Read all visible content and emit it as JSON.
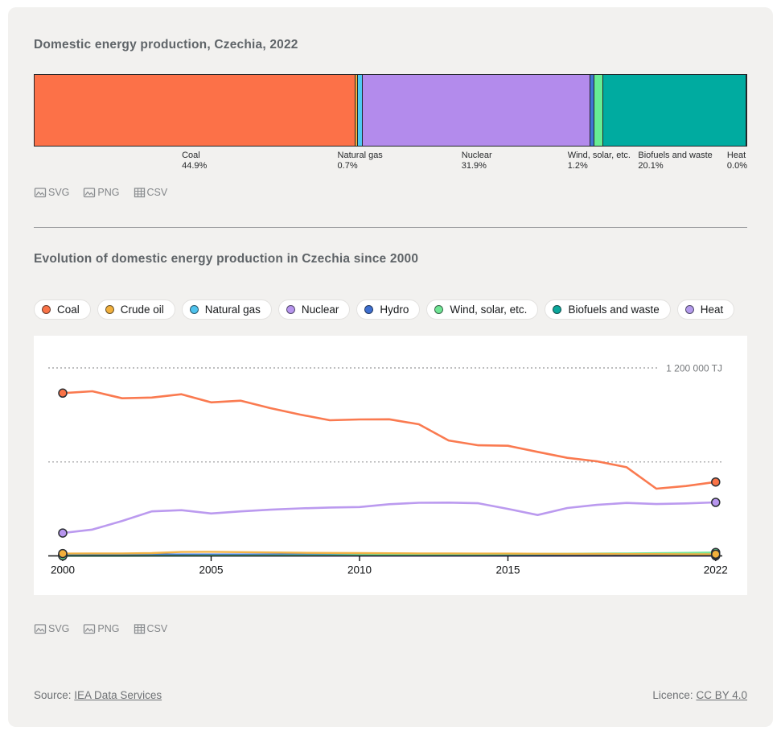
{
  "section1": {
    "title": "Domestic energy production, Czechia, 2022"
  },
  "section2": {
    "title": "Evolution of domestic energy production in Czechia since 2000"
  },
  "downloads": {
    "svg": "SVG",
    "png": "PNG",
    "csv": "CSV"
  },
  "footer": {
    "source_prefix": "Source:",
    "source_link": "IEA Data Services",
    "licence_prefix": "Licence:",
    "licence_link": "CC BY 4.0"
  },
  "chart_data": [
    {
      "type": "bar",
      "title": "Domestic energy production, Czechia, 2022",
      "unit": "% share, horizontal stacked bar",
      "segments": [
        {
          "label": "Coal",
          "value": 44.9,
          "color": "#FC7148",
          "show_label": true
        },
        {
          "label": "Crude oil",
          "value": 0.35,
          "color": "#F5AE3D",
          "show_label": false
        },
        {
          "label": "Natural gas",
          "value": 0.7,
          "color": "#4FC9F2",
          "show_label": true
        },
        {
          "label": "Nuclear",
          "value": 31.9,
          "color": "#B38BEC",
          "show_label": true
        },
        {
          "label": "Hydro",
          "value": 0.55,
          "color": "#3F76D2",
          "show_label": false
        },
        {
          "label": "Wind, solar, etc.",
          "value": 1.2,
          "color": "#67ED94",
          "show_label": true
        },
        {
          "label": "Biofuels and waste",
          "value": 20.1,
          "color": "#00ABA0",
          "show_label": true
        },
        {
          "label": "Heat",
          "value": 0.0,
          "color": "#B49BEC",
          "show_label": true
        }
      ]
    },
    {
      "type": "line",
      "title": "Evolution of domestic energy production in Czechia since 2000",
      "ylabel": "TJ",
      "ylim": [
        0,
        1400000
      ],
      "x": [
        2000,
        2001,
        2002,
        2003,
        2004,
        2005,
        2006,
        2007,
        2008,
        2009,
        2010,
        2011,
        2012,
        2013,
        2014,
        2015,
        2016,
        2017,
        2018,
        2019,
        2020,
        2021,
        2022
      ],
      "x_ticks": [
        2000,
        2005,
        2010,
        2015,
        2022
      ],
      "gridlines": [
        {
          "value": 1200000,
          "label": "1 200 000 TJ"
        },
        {
          "value": 600000,
          "label": ""
        }
      ],
      "series": [
        {
          "name": "Coal",
          "color": "#FA7347",
          "values": [
            1039000,
            1051000,
            1006000,
            1011000,
            1032000,
            980000,
            991000,
            943000,
            902000,
            866000,
            871000,
            872000,
            840000,
            737000,
            706000,
            703000,
            664000,
            626000,
            604000,
            566000,
            429000,
            446000,
            472000
          ]
        },
        {
          "name": "Crude oil",
          "color": "#F2B03C",
          "values": [
            15000,
            16000,
            16000,
            18000,
            25000,
            26000,
            24000,
            22000,
            20000,
            19000,
            18000,
            17000,
            16000,
            16000,
            15000,
            15000,
            14000,
            13000,
            13000,
            12000,
            12000,
            11000,
            11000
          ]
        },
        {
          "name": "Natural gas",
          "color": "#4EC3EE",
          "values": [
            7000,
            7000,
            7000,
            7000,
            7000,
            7000,
            6500,
            6500,
            6000,
            6000,
            6000,
            6000,
            6000,
            6000,
            6000,
            6000,
            6000,
            6000,
            6000,
            6000,
            6000,
            6000,
            6000
          ]
        },
        {
          "name": "Nuclear",
          "color": "#B795EE",
          "values": [
            146000,
            168000,
            223000,
            284000,
            292000,
            271000,
            284000,
            295000,
            303000,
            309000,
            312000,
            330000,
            339000,
            340000,
            336000,
            300000,
            261000,
            306000,
            326000,
            338000,
            331000,
            335000,
            342000
          ]
        },
        {
          "name": "Hydro",
          "color": "#3E6FD0",
          "values": [
            9000,
            9500,
            10000,
            9000,
            9000,
            9500,
            9500,
            9000,
            9000,
            9500,
            10000,
            9000,
            9000,
            9500,
            9000,
            9000,
            9000,
            9000,
            8000,
            8500,
            9500,
            9500,
            9000
          ]
        },
        {
          "name": "Wind, solar, etc.",
          "color": "#6FE594",
          "values": [
            500,
            600,
            700,
            900,
            1100,
            1300,
            1600,
            2000,
            2500,
            3500,
            5000,
            7000,
            9000,
            10000,
            11000,
            12000,
            13000,
            14000,
            15000,
            16000,
            17500,
            19500,
            22000
          ]
        },
        {
          "name": "Biofuels and waste",
          "color": "#0AA79B",
          "values": [
            4000,
            4200,
            4400,
            4600,
            4800,
            5000,
            5200,
            5400,
            5600,
            5800,
            6000,
            6200,
            6400,
            6600,
            6800,
            7000,
            7000,
            7000,
            7000,
            7000,
            7000,
            7000,
            7000
          ]
        },
        {
          "name": "Heat",
          "color": "#B49BEC",
          "values": [
            500,
            500,
            500,
            500,
            500,
            500,
            500,
            500,
            500,
            500,
            500,
            500,
            500,
            500,
            500,
            500,
            500,
            500,
            500,
            500,
            500,
            500,
            500
          ]
        }
      ],
      "legend_position": "top"
    }
  ]
}
